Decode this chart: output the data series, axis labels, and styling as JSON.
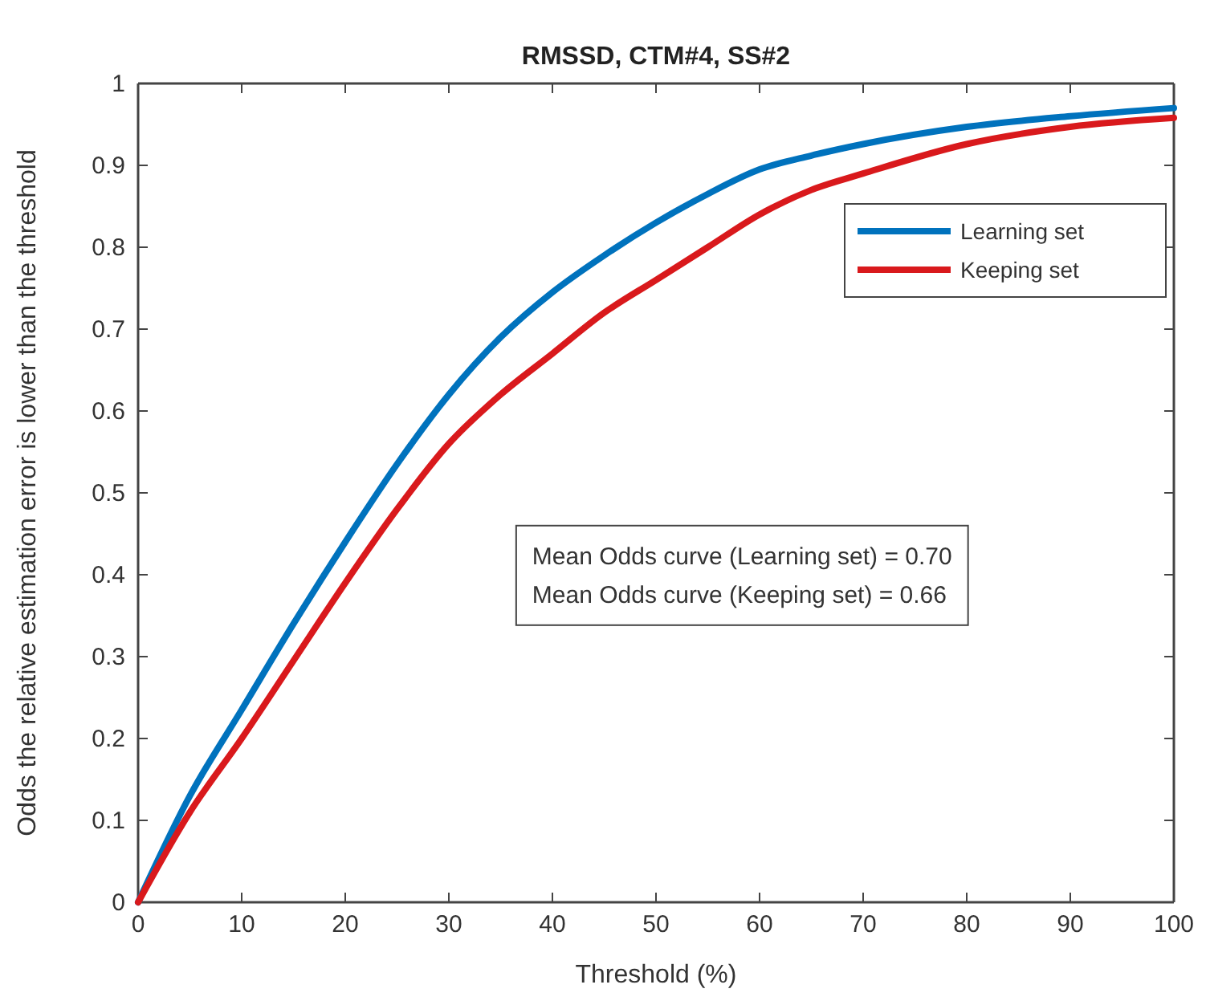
{
  "chart_data": {
    "type": "line",
    "title": "RMSSD, CTM#4, SS#2",
    "xlabel": "Threshold (%)",
    "ylabel": "Odds the relative estimation error is lower than the threshold",
    "x": [
      0,
      5,
      10,
      15,
      20,
      25,
      30,
      35,
      40,
      45,
      50,
      55,
      60,
      65,
      70,
      80,
      90,
      100
    ],
    "series": [
      {
        "name": "Learning set",
        "color": "#0072bd",
        "values": [
          0,
          0.13,
          0.235,
          0.34,
          0.44,
          0.535,
          0.62,
          0.69,
          0.745,
          0.79,
          0.83,
          0.865,
          0.895,
          0.912,
          0.926,
          0.947,
          0.96,
          0.97
        ]
      },
      {
        "name": "Keeping set",
        "color": "#d9191c",
        "values": [
          0,
          0.11,
          0.2,
          0.295,
          0.39,
          0.48,
          0.56,
          0.62,
          0.67,
          0.72,
          0.76,
          0.8,
          0.84,
          0.87,
          0.89,
          0.926,
          0.947,
          0.958
        ]
      }
    ],
    "xlim": [
      0,
      100
    ],
    "xticks": [
      0,
      10,
      20,
      30,
      40,
      50,
      60,
      70,
      80,
      90,
      100
    ],
    "ylim": [
      0,
      1
    ],
    "yticks": [
      0,
      0.1,
      0.2,
      0.3,
      0.4,
      0.5,
      0.6,
      0.7,
      0.8,
      0.9,
      1
    ],
    "grid": false,
    "legend": "top right",
    "marker": "none",
    "line_style": "solid",
    "annotations": [
      "Mean Odds curve (Learning set) = 0.70",
      "Mean Odds curve (Keeping set) = 0.66"
    ]
  }
}
